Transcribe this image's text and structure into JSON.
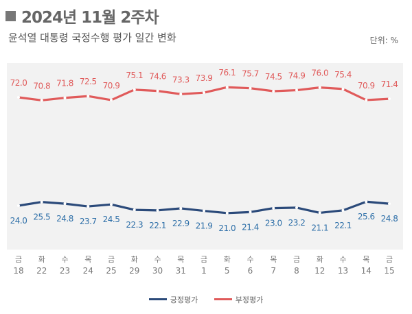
{
  "header": {
    "title": "2024년 11월 2주차",
    "subtitle": "윤석열 대통령 국정수행 평가 일간 변화",
    "unit": "단위: %"
  },
  "chart_data": {
    "type": "line",
    "categories": [
      [
        "금",
        "18"
      ],
      [
        "화",
        "22"
      ],
      [
        "수",
        "23"
      ],
      [
        "목",
        "24"
      ],
      [
        "금",
        "25"
      ],
      [
        "화",
        "29"
      ],
      [
        "수",
        "30"
      ],
      [
        "목",
        "31"
      ],
      [
        "금",
        "1"
      ],
      [
        "화",
        "5"
      ],
      [
        "수",
        "6"
      ],
      [
        "목",
        "7"
      ],
      [
        "금",
        "8"
      ],
      [
        "화",
        "12"
      ],
      [
        "수",
        "13"
      ],
      [
        "목",
        "14"
      ],
      [
        "금",
        "15"
      ]
    ],
    "series": [
      {
        "name": "긍정평가",
        "color": "#2b4a7a",
        "label_color": "#2e6fa8",
        "values": [
          24.0,
          25.5,
          24.8,
          23.7,
          24.5,
          22.3,
          22.1,
          22.9,
          21.9,
          21.0,
          21.4,
          23.0,
          23.2,
          21.1,
          22.1,
          25.6,
          24.8
        ]
      },
      {
        "name": "부정평가",
        "color": "#e05a5a",
        "label_color": "#e05a5a",
        "values": [
          72.0,
          70.8,
          71.8,
          72.5,
          70.9,
          75.1,
          74.6,
          73.3,
          73.9,
          76.1,
          75.7,
          74.5,
          74.9,
          76.0,
          75.4,
          70.9,
          71.4
        ]
      }
    ],
    "legend": "bottom",
    "grid": false,
    "background": "#f2f2f2"
  }
}
